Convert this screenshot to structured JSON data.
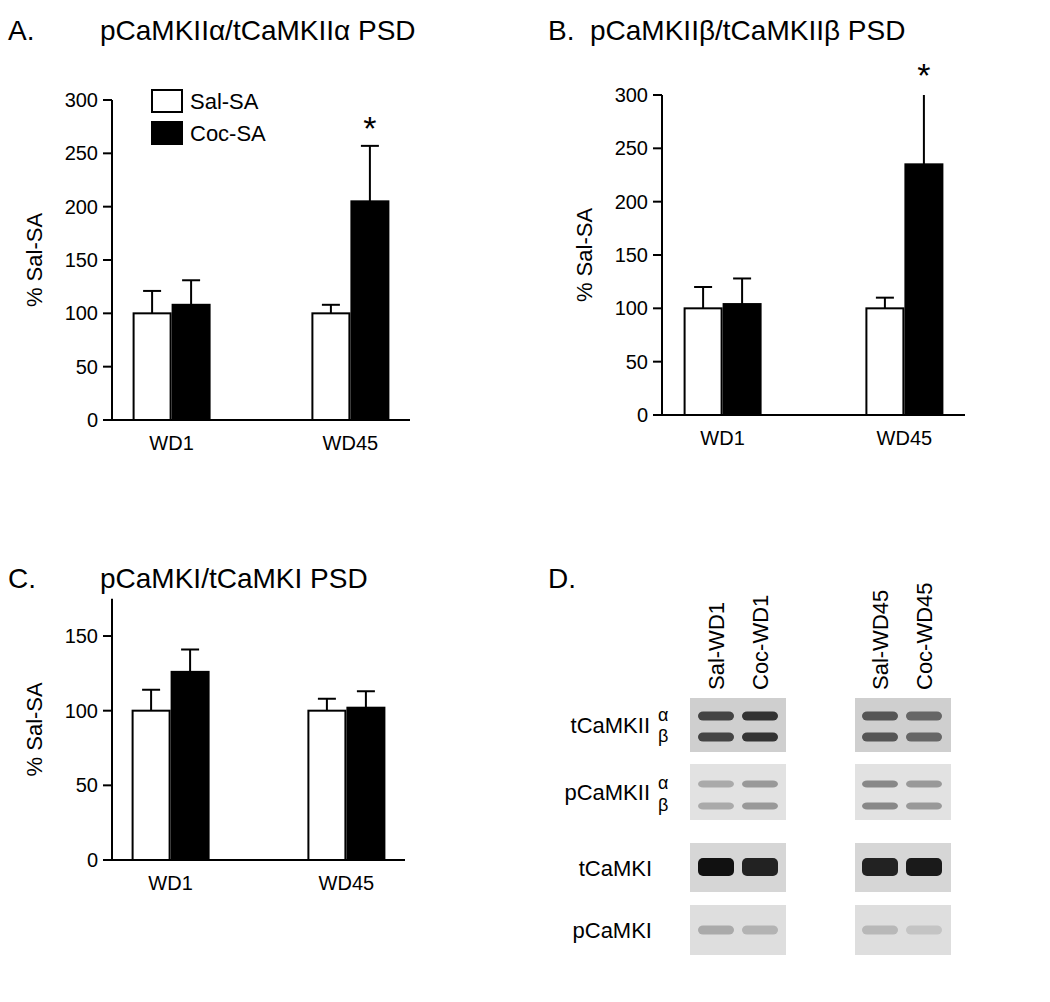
{
  "chart_data": [
    {
      "type": "bar",
      "panel": "A.",
      "title": "pCaMKIIα/tCaMKIIα PSD",
      "y_label": "% Sal-SA",
      "categories": [
        "WD1",
        "WD45"
      ],
      "series": [
        {
          "name": "Sal-SA",
          "color": "#ffffff",
          "values": [
            100,
            100
          ],
          "errors": [
            21,
            8
          ]
        },
        {
          "name": "Coc-SA",
          "color": "#000000",
          "values": [
            108,
            205
          ],
          "errors": [
            23,
            52
          ]
        }
      ],
      "ylim": [
        0,
        300
      ],
      "yticks": [
        0,
        50,
        100,
        150,
        200,
        250,
        300
      ],
      "legend": "top-left",
      "annotations": [
        {
          "text": "*",
          "series": 1,
          "category": 1
        }
      ]
    },
    {
      "type": "bar",
      "panel": "B.",
      "title": "pCaMKIIβ/tCaMKIIβ PSD",
      "y_label": "% Sal-SA",
      "categories": [
        "WD1",
        "WD45"
      ],
      "series": [
        {
          "color": "#ffffff",
          "values": [
            100,
            100
          ],
          "errors": [
            20,
            10
          ]
        },
        {
          "color": "#000000",
          "values": [
            104,
            235
          ],
          "errors": [
            24,
            67
          ]
        }
      ],
      "ylim": [
        0,
        300
      ],
      "yticks": [
        0,
        50,
        100,
        150,
        200,
        250,
        300
      ],
      "annotations": [
        {
          "text": "*",
          "series": 1,
          "category": 1
        }
      ]
    },
    {
      "type": "bar",
      "panel": "C.",
      "title": "pCaMKI/tCaMKI PSD",
      "y_label": "% Sal-SA",
      "categories": [
        "WD1",
        "WD45"
      ],
      "series": [
        {
          "color": "#ffffff",
          "values": [
            100,
            100
          ],
          "errors": [
            14,
            8
          ]
        },
        {
          "color": "#000000",
          "values": [
            126,
            102
          ],
          "errors": [
            15,
            11
          ]
        }
      ],
      "ylim": [
        0,
        175
      ],
      "yticks": [
        0,
        50,
        100,
        150
      ]
    }
  ],
  "blot": {
    "panel": "D.",
    "lanes": [
      "Sal-WD1",
      "Coc-WD1",
      "Sal-WD45",
      "Coc-WD45"
    ],
    "rows": [
      {
        "label": "tCaMKII",
        "bands": [
          "α",
          "β"
        ]
      },
      {
        "label": "pCaMKII",
        "bands": [
          "α",
          "β"
        ]
      },
      {
        "label": "tCaMKI"
      },
      {
        "label": "pCaMKI"
      }
    ]
  }
}
